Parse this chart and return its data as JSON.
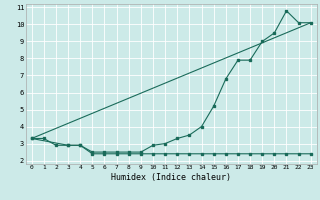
{
  "xlabel": "Humidex (Indice chaleur)",
  "xlim": [
    -0.5,
    23.5
  ],
  "ylim": [
    1.8,
    11.2
  ],
  "xticks": [
    0,
    1,
    2,
    3,
    4,
    5,
    6,
    7,
    8,
    9,
    10,
    11,
    12,
    13,
    14,
    15,
    16,
    17,
    18,
    19,
    20,
    21,
    22,
    23
  ],
  "yticks": [
    2,
    3,
    4,
    5,
    6,
    7,
    8,
    9,
    10,
    11
  ],
  "bg_color": "#cceae8",
  "grid_color": "#ffffff",
  "line_color": "#1a6b5a",
  "line1_x": [
    0,
    1,
    2,
    3,
    4,
    5,
    6,
    7,
    8,
    9,
    10,
    11,
    12,
    13,
    14,
    15,
    16,
    17,
    18,
    19,
    20,
    21,
    22,
    23
  ],
  "line1_y": [
    3.3,
    3.3,
    2.9,
    2.9,
    2.9,
    2.5,
    2.5,
    2.5,
    2.5,
    2.5,
    2.9,
    3.0,
    3.3,
    3.5,
    4.0,
    5.2,
    6.8,
    7.9,
    7.9,
    9.0,
    9.5,
    10.8,
    10.1,
    10.1
  ],
  "line2_x": [
    0,
    3,
    4,
    5,
    6,
    7,
    8,
    9,
    10,
    11,
    12,
    13,
    14,
    15,
    16,
    17,
    18,
    19,
    20,
    21,
    22,
    23
  ],
  "line2_y": [
    3.3,
    2.9,
    2.9,
    2.4,
    2.4,
    2.4,
    2.4,
    2.4,
    2.4,
    2.4,
    2.4,
    2.4,
    2.4,
    2.4,
    2.4,
    2.4,
    2.4,
    2.4,
    2.4,
    2.4,
    2.4,
    2.4
  ],
  "line3_x": [
    0,
    23
  ],
  "line3_y": [
    3.3,
    10.1
  ]
}
